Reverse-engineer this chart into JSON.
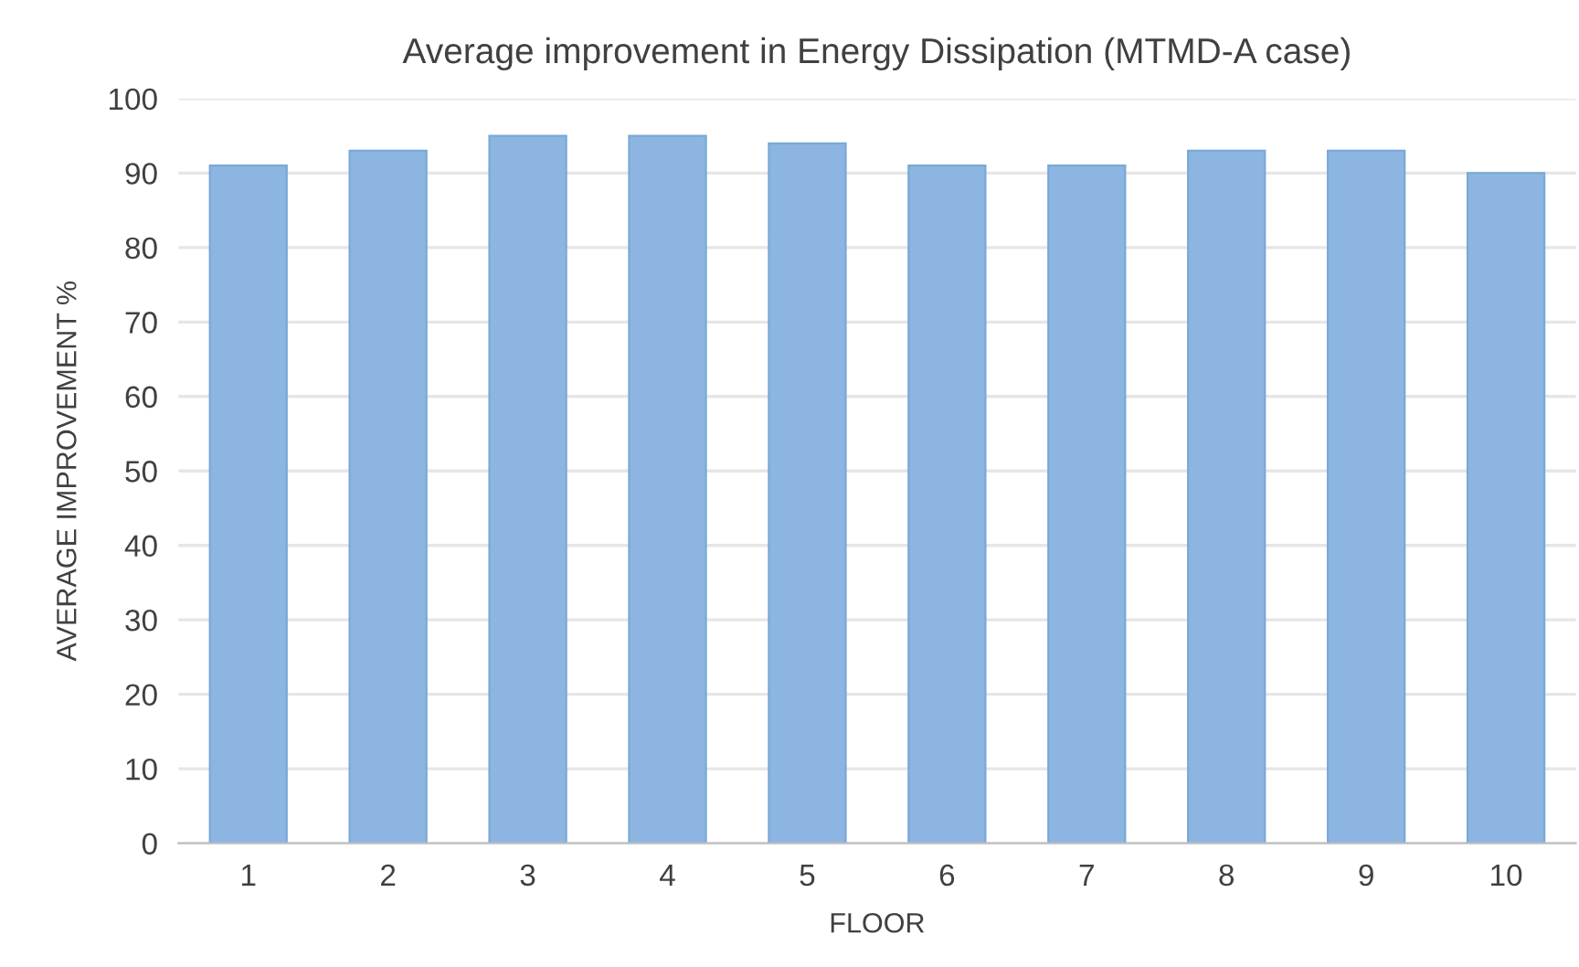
{
  "chart_data": {
    "type": "bar",
    "title": "Average improvement in Energy Dissipation (MTMD-A case)",
    "xlabel": "FLOOR",
    "ylabel": "AVERAGE IMPROVEMENT %",
    "categories": [
      "1",
      "2",
      "3",
      "4",
      "5",
      "6",
      "7",
      "8",
      "9",
      "10"
    ],
    "values": [
      91,
      93,
      95,
      95,
      94,
      91,
      91,
      93,
      93,
      90
    ],
    "color": "#8cb6e1",
    "ylim": [
      0,
      100
    ],
    "yticks": [
      0,
      10,
      20,
      30,
      40,
      50,
      60,
      70,
      80,
      90,
      100
    ],
    "grid": "y"
  }
}
